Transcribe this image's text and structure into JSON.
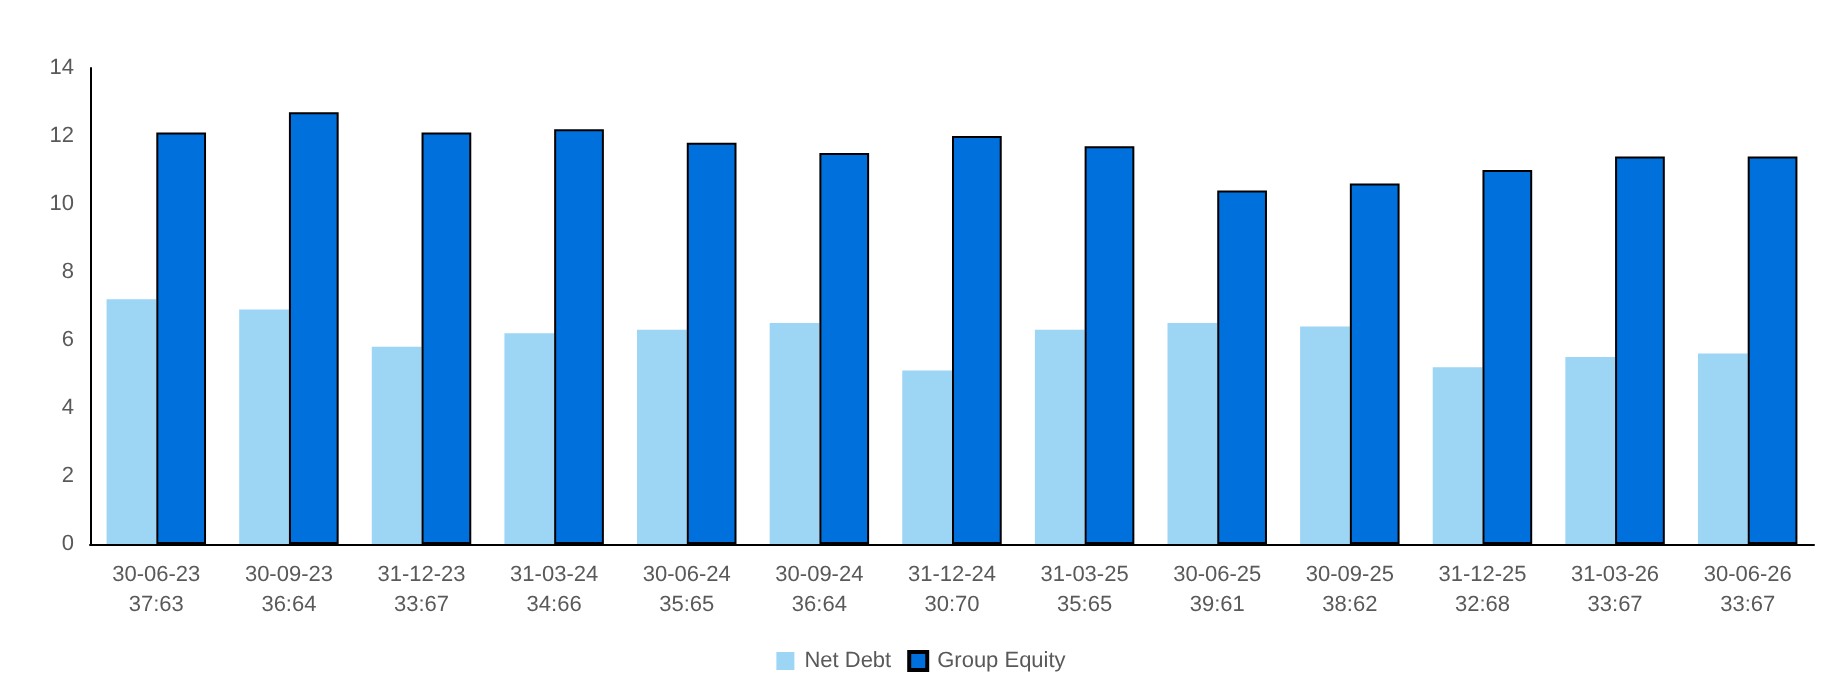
{
  "chart_data": {
    "type": "bar",
    "categories": [
      "30-06-23\n37:63",
      "30-09-23\n36:64",
      "31-12-23\n33:67",
      "31-03-24\n34:66",
      "30-06-24\n35:65",
      "30-09-24\n36:64",
      "31-12-24\n30:70",
      "31-03-25\n35:65",
      "30-06-25\n39:61",
      "30-09-25\n38:62",
      "31-12-25\n32:68",
      "31-03-26\n33:67",
      "30-06-26\n33:67"
    ],
    "series": [
      {
        "name": "Net Debt",
        "color": "#9dd5f5",
        "values": [
          7.2,
          6.9,
          5.8,
          6.2,
          6.3,
          6.5,
          5.1,
          6.3,
          6.5,
          6.4,
          5.2,
          5.5,
          5.6
        ]
      },
      {
        "name": "Group Equity",
        "color": "#0070dc",
        "values": [
          12.1,
          12.7,
          12.1,
          12.2,
          11.8,
          11.5,
          12.0,
          11.7,
          10.4,
          10.6,
          11.0,
          11.4,
          11.4
        ]
      }
    ],
    "ylim": [
      0,
      14
    ],
    "yticks": [
      0,
      2,
      4,
      6,
      8,
      10,
      12,
      14
    ],
    "grid": false,
    "legend": "bottom"
  }
}
